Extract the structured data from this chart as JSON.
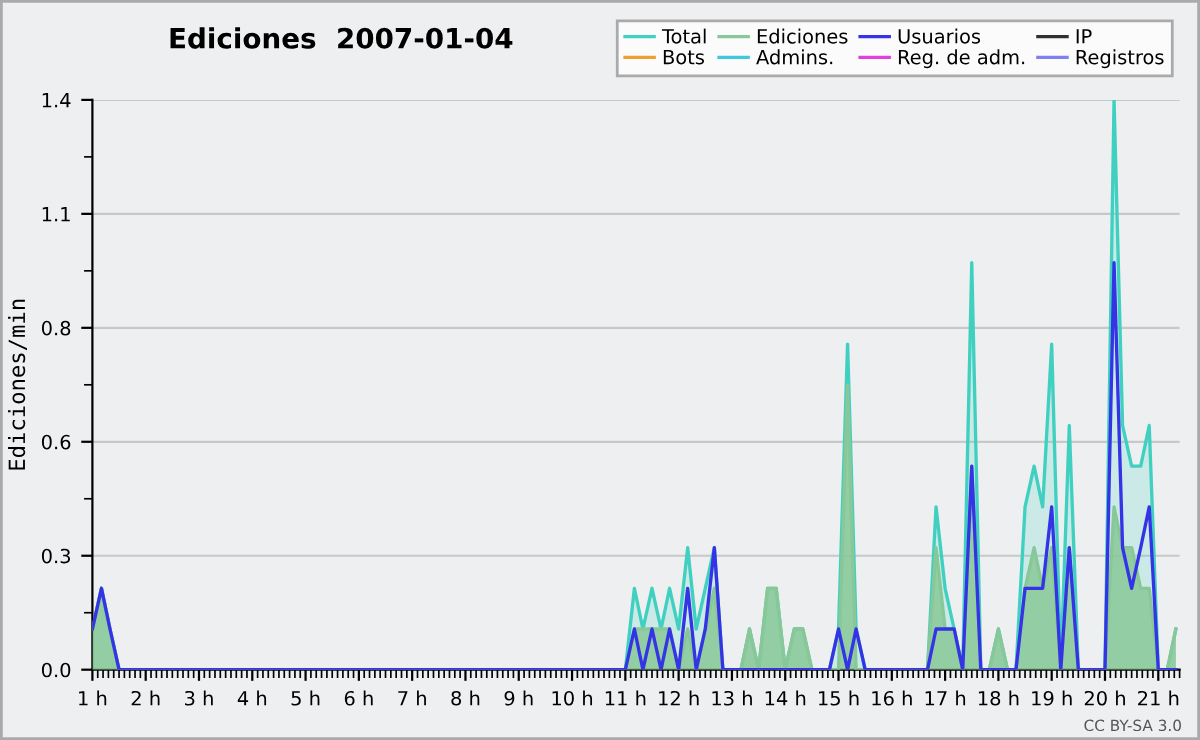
{
  "chart_data": {
    "type": "line",
    "title": "Ediciones  2007-01-04",
    "ylabel": "Ediciones/min",
    "annotations": [
      "CC BY-SA 3.0"
    ],
    "x": [
      1.0,
      1.17,
      1.33,
      1.5,
      11.0,
      11.17,
      11.33,
      11.5,
      11.67,
      11.83,
      12.0,
      12.17,
      12.33,
      12.5,
      12.67,
      12.83,
      13.0,
      13.17,
      13.33,
      13.5,
      13.67,
      13.83,
      14.0,
      14.17,
      14.33,
      14.5,
      14.67,
      14.83,
      15.0,
      15.17,
      15.33,
      15.5,
      15.67,
      15.83,
      16.0,
      16.17,
      16.33,
      16.5,
      16.67,
      16.83,
      17.0,
      17.17,
      17.33,
      17.5,
      17.67,
      17.83,
      18.0,
      18.17,
      18.33,
      18.5,
      18.67,
      18.83,
      19.0,
      19.17,
      19.33,
      19.5,
      19.67,
      19.83,
      20.0,
      20.17,
      20.33,
      20.5,
      20.67,
      20.83,
      21.0,
      21.17,
      21.33
    ],
    "series": [
      {
        "name": "Total",
        "type": "area",
        "color": "#40d0c0",
        "values": [
          0.1,
          0.2,
          0.1,
          0,
          0,
          0.2,
          0.1,
          0.2,
          0.1,
          0.2,
          0.1,
          0.3,
          0.1,
          0.2,
          0.3,
          0,
          0,
          0,
          0.1,
          0,
          0.2,
          0.2,
          0,
          0.1,
          0.1,
          0,
          0,
          0,
          0.1,
          0.8,
          0.1,
          0,
          0,
          0,
          0,
          0,
          0,
          0,
          0,
          0.4,
          0.2,
          0.1,
          0,
          1.0,
          0,
          0,
          0.1,
          0,
          0,
          0.4,
          0.5,
          0.4,
          0.8,
          0,
          0.6,
          0,
          0,
          0,
          0,
          1.4,
          0.6,
          0.5,
          0.5,
          0.6,
          0,
          0,
          0.1
        ]
      },
      {
        "name": "Ediciones",
        "type": "area",
        "color": "#88c898",
        "values": [
          0.1,
          0.2,
          0.1,
          0,
          0,
          0.1,
          0.1,
          0.1,
          0.1,
          0.1,
          0,
          0.1,
          0,
          0.1,
          0.2,
          0,
          0,
          0,
          0.1,
          0,
          0.2,
          0.2,
          0,
          0.1,
          0.1,
          0,
          0,
          0,
          0,
          0.7,
          0,
          0,
          0,
          0,
          0,
          0,
          0,
          0,
          0,
          0.3,
          0.1,
          0.1,
          0,
          0.5,
          0,
          0,
          0.1,
          0,
          0,
          0.2,
          0.3,
          0.2,
          0.3,
          0,
          0.3,
          0,
          0,
          0,
          0,
          0.4,
          0.3,
          0.3,
          0.2,
          0.2,
          0,
          0,
          0.1
        ]
      },
      {
        "name": "Usuarios",
        "color": "#3434e6",
        "values": [
          0.1,
          0.2,
          0.1,
          0,
          0,
          0.1,
          0,
          0.1,
          0,
          0.1,
          0,
          0.2,
          0,
          0.1,
          0.3,
          0,
          0,
          0,
          0,
          0,
          0,
          0,
          0,
          0,
          0,
          0,
          0,
          0,
          0.1,
          0,
          0.1,
          0,
          0,
          0,
          0,
          0,
          0,
          0,
          0,
          0.1,
          0.1,
          0.1,
          0,
          0.5,
          0,
          0,
          0,
          0,
          0,
          0.2,
          0.2,
          0.2,
          0.4,
          0,
          0.3,
          0,
          0,
          0,
          0,
          1.0,
          0.3,
          0.2,
          0.3,
          0.4,
          0,
          0,
          0
        ]
      },
      {
        "name": "IP",
        "color": "#303030",
        "values": [
          null,
          null,
          null,
          null,
          null,
          null,
          null,
          null,
          null,
          null,
          null,
          null,
          null,
          null,
          null,
          null,
          null,
          null,
          null,
          null,
          null,
          null,
          null,
          null,
          null,
          null,
          null,
          null,
          null,
          null,
          null,
          null,
          null,
          null,
          null,
          null,
          null,
          null,
          null,
          null,
          null,
          null,
          null,
          null,
          null,
          null,
          null,
          null,
          null,
          null,
          null,
          null,
          null,
          null,
          null,
          null,
          null,
          null,
          null,
          null,
          null,
          null,
          null,
          null,
          null,
          null,
          null
        ]
      },
      {
        "name": "Bots",
        "color": "#f0a030",
        "values": [
          null,
          null,
          null,
          null,
          null,
          null,
          null,
          null,
          null,
          null,
          null,
          null,
          null,
          null,
          null,
          null,
          null,
          null,
          null,
          null,
          null,
          null,
          null,
          null,
          null,
          null,
          null,
          null,
          null,
          null,
          null,
          null,
          null,
          null,
          null,
          null,
          null,
          null,
          null,
          null,
          null,
          null,
          null,
          null,
          null,
          null,
          null,
          null,
          null,
          null,
          null,
          null,
          null,
          null,
          null,
          null,
          null,
          null,
          null,
          null,
          null,
          null,
          null,
          null,
          null,
          null,
          null
        ]
      },
      {
        "name": "Admins.",
        "color": "#40c8e0",
        "values": [
          null,
          null,
          null,
          null,
          null,
          null,
          null,
          null,
          null,
          null,
          null,
          null,
          null,
          null,
          null,
          null,
          null,
          null,
          null,
          null,
          null,
          null,
          null,
          null,
          null,
          null,
          null,
          null,
          null,
          null,
          null,
          null,
          null,
          null,
          null,
          null,
          null,
          null,
          null,
          null,
          null,
          null,
          null,
          null,
          null,
          null,
          null,
          null,
          null,
          null,
          null,
          null,
          null,
          null,
          null,
          null,
          null,
          null,
          null,
          null,
          null,
          null,
          null,
          null,
          null,
          null,
          null
        ]
      },
      {
        "name": "Reg. de adm.",
        "color": "#e040e0",
        "values": [
          null,
          null,
          null,
          null,
          null,
          null,
          null,
          null,
          null,
          null,
          null,
          null,
          null,
          null,
          null,
          null,
          null,
          null,
          null,
          null,
          null,
          null,
          null,
          null,
          null,
          null,
          null,
          null,
          null,
          null,
          null,
          null,
          null,
          null,
          null,
          null,
          null,
          null,
          null,
          null,
          null,
          null,
          null,
          null,
          null,
          null,
          null,
          null,
          null,
          null,
          null,
          null,
          null,
          null,
          null,
          null,
          null,
          null,
          null,
          null,
          null,
          null,
          null,
          null,
          null,
          null,
          null
        ]
      },
      {
        "name": "Registros",
        "color": "#8080f0",
        "values": [
          null,
          null,
          null,
          null,
          null,
          null,
          null,
          null,
          null,
          null,
          null,
          null,
          null,
          null,
          null,
          null,
          null,
          null,
          null,
          null,
          null,
          null,
          null,
          null,
          null,
          null,
          null,
          null,
          null,
          null,
          null,
          null,
          null,
          null,
          null,
          null,
          null,
          null,
          null,
          null,
          null,
          null,
          null,
          null,
          null,
          null,
          null,
          null,
          null,
          null,
          null,
          null,
          null,
          null,
          null,
          null,
          null,
          null,
          null,
          null,
          null,
          null,
          null,
          null,
          null,
          null,
          null
        ]
      }
    ],
    "xlim": [
      1,
      21.4
    ],
    "ylim": [
      0,
      1.4
    ],
    "xticks": [
      {
        "value": 1,
        "label": "1 h"
      },
      {
        "value": 2,
        "label": "2 h"
      },
      {
        "value": 3,
        "label": "3 h"
      },
      {
        "value": 4,
        "label": "4 h"
      },
      {
        "value": 5,
        "label": "5 h"
      },
      {
        "value": 6,
        "label": "6 h"
      },
      {
        "value": 7,
        "label": "7 h"
      },
      {
        "value": 8,
        "label": "8 h"
      },
      {
        "value": 9,
        "label": "9 h"
      },
      {
        "value": 10,
        "label": "10 h"
      },
      {
        "value": 11,
        "label": "11 h"
      },
      {
        "value": 12,
        "label": "12 h"
      },
      {
        "value": 13,
        "label": "13 h"
      },
      {
        "value": 14,
        "label": "14 h"
      },
      {
        "value": 15,
        "label": "15 h"
      },
      {
        "value": 16,
        "label": "16 h"
      },
      {
        "value": 17,
        "label": "17 h"
      },
      {
        "value": 18,
        "label": "18 h"
      },
      {
        "value": 19,
        "label": "19 h"
      },
      {
        "value": 20,
        "label": "20 h"
      },
      {
        "value": 21,
        "label": "21 h"
      }
    ],
    "yticks": [
      {
        "value": 0,
        "label": "0.0"
      },
      {
        "value": 0.28,
        "label": "0.3"
      },
      {
        "value": 0.56,
        "label": "0.6"
      },
      {
        "value": 0.84,
        "label": "0.8"
      },
      {
        "value": 1.12,
        "label": "1.1"
      },
      {
        "value": 1.4,
        "label": "1.4"
      }
    ],
    "grid": "y",
    "legend": "top right"
  }
}
